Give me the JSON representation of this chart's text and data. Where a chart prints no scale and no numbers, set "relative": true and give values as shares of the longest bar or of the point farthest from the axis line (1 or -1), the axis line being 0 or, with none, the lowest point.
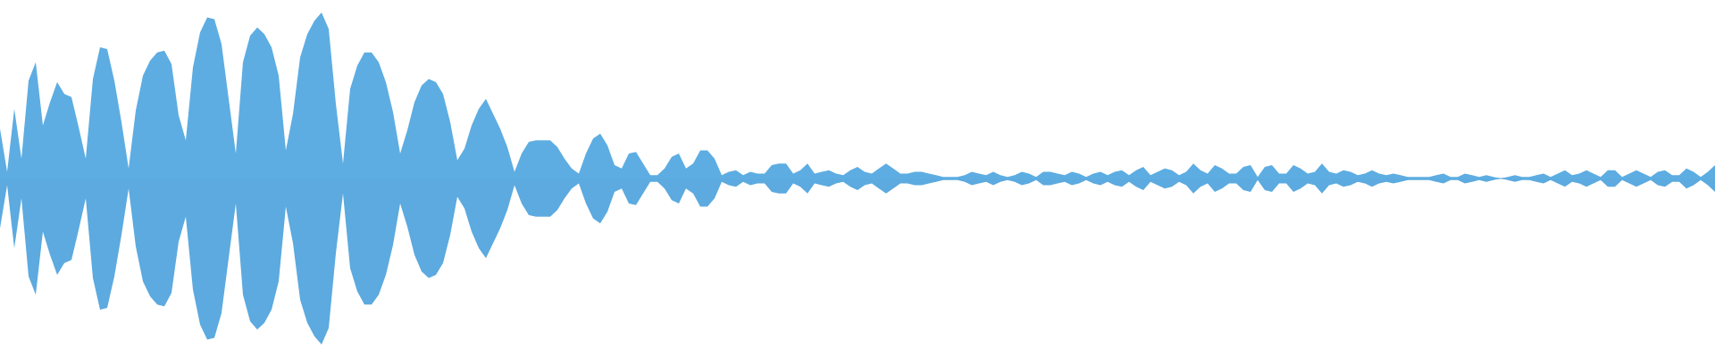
{
  "chart_data": {
    "type": "area",
    "relative": true,
    "categories": [
      null,
      null,
      null,
      null,
      null,
      null,
      null,
      null,
      null,
      null,
      null,
      null,
      null,
      null,
      null,
      null,
      null,
      null,
      null,
      null,
      null,
      null,
      null,
      null,
      null,
      null,
      null,
      null,
      null,
      null,
      null,
      null,
      null,
      null,
      null,
      null,
      null,
      null,
      null,
      null,
      null,
      null,
      null,
      null,
      null,
      null,
      null,
      null,
      null,
      null,
      null,
      null,
      null,
      null,
      null,
      null,
      null,
      null,
      null,
      null,
      null,
      null,
      null,
      null,
      null,
      null,
      null,
      null,
      null,
      null,
      null,
      null,
      null,
      null,
      null,
      null,
      null,
      null,
      null,
      null,
      null,
      null,
      null,
      null,
      null,
      null,
      null,
      null,
      null,
      null,
      null,
      null,
      null,
      null,
      null,
      null,
      null,
      null,
      null,
      null,
      null,
      null,
      null,
      null,
      null,
      null,
      null,
      null,
      null,
      null,
      null,
      null,
      null,
      null,
      null,
      null,
      null,
      null,
      null,
      null,
      null,
      null,
      null,
      null,
      null,
      null,
      null,
      null,
      null,
      null,
      null,
      null,
      null,
      null,
      null,
      null,
      null,
      null,
      null,
      null,
      null,
      null,
      null,
      null,
      null,
      null,
      null,
      null,
      null,
      null,
      null,
      null,
      null,
      null,
      null,
      null,
      null,
      null,
      null,
      null,
      null,
      null,
      null,
      null,
      null,
      null,
      null,
      null,
      null,
      null,
      null,
      null,
      null,
      null,
      null,
      null,
      null,
      null,
      null,
      null,
      null,
      null,
      null,
      null,
      null,
      null,
      null,
      null,
      null,
      null,
      null,
      null,
      null,
      null,
      null,
      null,
      null,
      null,
      null,
      null,
      null,
      null,
      null,
      null,
      null,
      null,
      null,
      null,
      null,
      null,
      null,
      null,
      null,
      null,
      null,
      null,
      null,
      null,
      null,
      null,
      null,
      null,
      null,
      null,
      null,
      null,
      null,
      null,
      null,
      null,
      null,
      null,
      null,
      null,
      null,
      null,
      null,
      null,
      null,
      null,
      null
    ],
    "ref_lines": [
      {
        "axis": "y",
        "value": 0,
        "color": "#5dade2"
      }
    ],
    "series": [
      {
        "color": "#5dade2",
        "values": [
          0.3,
          0.04,
          0.42,
          0.12,
          0.59,
          0.7,
          0.32,
          0.46,
          0.58,
          0.51,
          0.49,
          0.31,
          0.12,
          0.6,
          0.79,
          0.78,
          0.59,
          0.34,
          0.06,
          0.41,
          0.62,
          0.71,
          0.76,
          0.77,
          0.69,
          0.38,
          0.23,
          0.67,
          0.88,
          0.97,
          0.96,
          0.81,
          0.48,
          0.15,
          0.7,
          0.86,
          0.91,
          0.87,
          0.79,
          0.62,
          0.17,
          0.39,
          0.73,
          0.87,
          0.95,
          1,
          0.9,
          0.45,
          0.09,
          0.54,
          0.68,
          0.76,
          0.76,
          0.7,
          0.58,
          0.4,
          0.15,
          0.29,
          0.46,
          0.56,
          0.6,
          0.58,
          0.51,
          0.34,
          0.11,
          0.18,
          0.32,
          0.42,
          0.48,
          0.39,
          0.3,
          0.19,
          0.04,
          0.15,
          0.22,
          0.23,
          0.23,
          0.23,
          0.19,
          0.12,
          0.06,
          0.03,
          0.15,
          0.24,
          0.27,
          0.2,
          0.08,
          0.06,
          0.15,
          0.16,
          0.09,
          0.02,
          0.02,
          0.06,
          0.13,
          0.15,
          0.06,
          0.09,
          0.17,
          0.17,
          0.12,
          0.02,
          0.04,
          0.05,
          0.02,
          0.04,
          0.03,
          0.03,
          0.08,
          0.09,
          0.09,
          0.03,
          0.05,
          0.09,
          0.03,
          0.04,
          0.05,
          0.03,
          0.02,
          0.05,
          0.07,
          0.04,
          0.03,
          0.06,
          0.09,
          0.06,
          0.03,
          0.03,
          0.04,
          0.04,
          0.03,
          0.02,
          0.01,
          0.01,
          0.01,
          0.02,
          0.04,
          0.03,
          0.02,
          0.04,
          0.02,
          0.01,
          0.02,
          0.04,
          0.03,
          0.01,
          0.04,
          0.04,
          0.03,
          0.02,
          0.04,
          0.03,
          0.01,
          0.03,
          0.04,
          0.02,
          0.04,
          0.05,
          0.02,
          0.05,
          0.07,
          0.02,
          0.04,
          0.06,
          0.05,
          0.02,
          0.04,
          0.09,
          0.05,
          0.03,
          0.08,
          0.06,
          0.03,
          0.03,
          0.07,
          0.08,
          0.01,
          0.07,
          0.08,
          0.03,
          0.03,
          0.08,
          0.06,
          0.03,
          0.04,
          0.09,
          0.04,
          0.03,
          0.05,
          0.04,
          0.02,
          0.03,
          0.05,
          0.03,
          0.02,
          0.03,
          0.02,
          0.01,
          0.01,
          0.01,
          0.01,
          0.02,
          0.03,
          0.01,
          0.01,
          0.03,
          0.02,
          0.01,
          0.02,
          0.01,
          0,
          0.01,
          0.02,
          0.01,
          0.01,
          0.02,
          0.03,
          0.01,
          0.03,
          0.05,
          0.02,
          0.03,
          0.05,
          0.03,
          0.01,
          0.05,
          0.05,
          0.01,
          0.03,
          0.05,
          0.03,
          0.01,
          0.04,
          0.05,
          0.02,
          0.02,
          0.06,
          0.04,
          0.01,
          0.04,
          0.08
        ]
      },
      {
        "color": "#5caadf",
        "values": [
          -0.3,
          -0.04,
          -0.42,
          -0.12,
          -0.59,
          -0.7,
          -0.32,
          -0.46,
          -0.58,
          -0.51,
          -0.49,
          -0.31,
          -0.12,
          -0.6,
          -0.79,
          -0.78,
          -0.59,
          -0.34,
          -0.06,
          -0.41,
          -0.62,
          -0.71,
          -0.76,
          -0.77,
          -0.69,
          -0.38,
          -0.23,
          -0.67,
          -0.88,
          -0.97,
          -0.96,
          -0.81,
          -0.48,
          -0.15,
          -0.7,
          -0.86,
          -0.91,
          -0.87,
          -0.79,
          -0.62,
          -0.17,
          -0.39,
          -0.73,
          -0.87,
          -0.95,
          -1,
          -0.9,
          -0.45,
          -0.09,
          -0.54,
          -0.68,
          -0.76,
          -0.76,
          -0.7,
          -0.58,
          -0.4,
          -0.15,
          -0.29,
          -0.46,
          -0.56,
          -0.6,
          -0.58,
          -0.51,
          -0.34,
          -0.11,
          -0.18,
          -0.32,
          -0.42,
          -0.48,
          -0.39,
          -0.3,
          -0.19,
          -0.04,
          -0.15,
          -0.22,
          -0.23,
          -0.23,
          -0.23,
          -0.19,
          -0.12,
          -0.06,
          -0.03,
          -0.15,
          -0.24,
          -0.27,
          -0.2,
          -0.08,
          -0.06,
          -0.15,
          -0.16,
          -0.09,
          -0.02,
          -0.02,
          -0.06,
          -0.13,
          -0.15,
          -0.06,
          -0.09,
          -0.17,
          -0.17,
          -0.12,
          -0.02,
          -0.04,
          -0.05,
          -0.02,
          -0.04,
          -0.03,
          -0.03,
          -0.08,
          -0.09,
          -0.09,
          -0.03,
          -0.05,
          -0.09,
          -0.03,
          -0.04,
          -0.05,
          -0.03,
          -0.02,
          -0.05,
          -0.07,
          -0.04,
          -0.03,
          -0.06,
          -0.09,
          -0.06,
          -0.03,
          -0.03,
          -0.04,
          -0.04,
          -0.03,
          -0.02,
          -0.01,
          -0.01,
          -0.01,
          -0.02,
          -0.04,
          -0.03,
          -0.02,
          -0.04,
          -0.02,
          -0.01,
          -0.02,
          -0.04,
          -0.03,
          -0.01,
          -0.04,
          -0.04,
          -0.03,
          -0.02,
          -0.04,
          -0.03,
          -0.01,
          -0.03,
          -0.04,
          -0.02,
          -0.04,
          -0.05,
          -0.02,
          -0.05,
          -0.07,
          -0.02,
          -0.04,
          -0.06,
          -0.05,
          -0.02,
          -0.04,
          -0.09,
          -0.05,
          -0.03,
          -0.08,
          -0.06,
          -0.03,
          -0.03,
          -0.07,
          -0.08,
          -0.01,
          -0.07,
          -0.08,
          -0.03,
          -0.03,
          -0.08,
          -0.06,
          -0.03,
          -0.04,
          -0.09,
          -0.04,
          -0.03,
          -0.05,
          -0.04,
          -0.02,
          -0.03,
          -0.05,
          -0.03,
          -0.02,
          -0.03,
          -0.02,
          -0.01,
          -0.01,
          -0.01,
          -0.01,
          -0.02,
          -0.03,
          -0.01,
          -0.01,
          -0.03,
          -0.02,
          -0.01,
          -0.02,
          -0.01,
          0,
          -0.01,
          -0.02,
          -0.01,
          -0.01,
          -0.02,
          -0.03,
          -0.01,
          -0.03,
          -0.05,
          -0.02,
          -0.03,
          -0.05,
          -0.03,
          -0.01,
          -0.05,
          -0.05,
          -0.01,
          -0.03,
          -0.05,
          -0.03,
          -0.01,
          -0.04,
          -0.05,
          -0.02,
          -0.02,
          -0.06,
          -0.04,
          -0.01,
          -0.04,
          -0.08
        ]
      }
    ]
  }
}
